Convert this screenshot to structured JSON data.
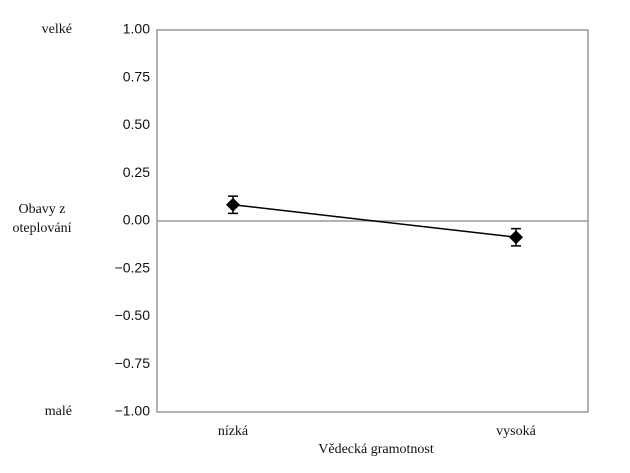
{
  "chart_data": {
    "type": "line",
    "categories": [
      "nízká",
      "vysoká"
    ],
    "series": [
      {
        "name": "Obavy z oteplování",
        "color": "#000000",
        "values": [
          0.085,
          -0.085
        ],
        "errors": [
          0.045,
          0.045
        ]
      }
    ],
    "xlabel": "Vědecká gramotnost",
    "ylabel_lines": [
      "Obavy z",
      "oteplování"
    ],
    "top_label": "velké",
    "bottom_label": "malé",
    "ylim": [
      -1,
      1
    ],
    "yticks": [
      {
        "value": -1,
        "label": "−1.00"
      },
      {
        "value": -0.75,
        "label": "−0.75"
      },
      {
        "value": -0.5,
        "label": "−0.50"
      },
      {
        "value": -0.25,
        "label": "−0.25"
      },
      {
        "value": 0,
        "label": "0.00"
      },
      0.25,
      {
        "value": 0.5,
        "label": "0.50"
      },
      0.75,
      {
        "value": 1,
        "label": "1.00"
      }
    ],
    "reference_line": 0
  }
}
